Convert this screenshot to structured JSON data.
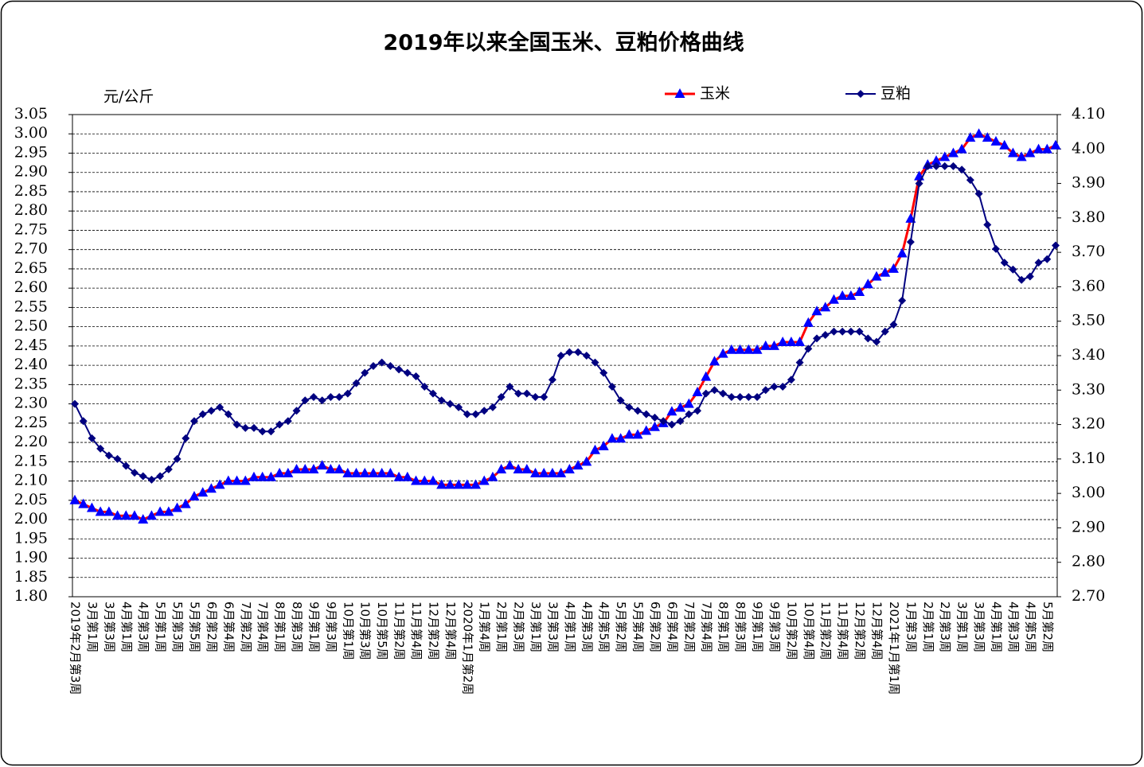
{
  "chart_data": {
    "type": "line",
    "title": "2019年以来全国玉米、豆粕价格曲线",
    "y_label": "元/公斤",
    "categories": [
      "2019年2月第3周",
      null,
      "3月第1周",
      null,
      "3月第3周",
      null,
      "4月第1周",
      null,
      "4月第3周",
      null,
      "5月第1周",
      null,
      "5月第3周",
      null,
      "5月第5周",
      null,
      "6月第2周",
      null,
      "6月第4周",
      null,
      "7月第2周",
      null,
      "7月第4周",
      null,
      "8月第1周",
      null,
      "8月第3周",
      null,
      "9月第1周",
      null,
      "9月第3周",
      null,
      "10月第1周",
      null,
      "10月第3周",
      null,
      "10月第5周",
      null,
      "11月第2周",
      null,
      "11月第4周",
      null,
      "12月第2周",
      null,
      "12月第4周",
      null,
      "2020年1月第2周",
      null,
      "1月第4周",
      null,
      "2月第1周",
      null,
      "2月第3周",
      null,
      "3月第1周",
      null,
      "3月第3周",
      null,
      "4月第1周",
      null,
      "4月第3周",
      null,
      "4月第5周",
      null,
      "5月第2周",
      null,
      "5月第4周",
      null,
      "6月第2周",
      null,
      "6月第4周",
      null,
      "7月第2周",
      null,
      "7月第4周",
      null,
      "8月第1周",
      null,
      "8月第3周",
      null,
      "9月第1周",
      null,
      "9月第3周",
      null,
      "10月第2周",
      null,
      "10月第4周",
      null,
      "11月第2周",
      null,
      "11月第4周",
      null,
      "12月第2周",
      null,
      "12月第4周",
      null,
      "2021年1月第1周",
      null,
      "1月第3周",
      null,
      "2月第1周",
      null,
      "2月第3周",
      null,
      "3月第1周",
      null,
      "3月第3周",
      null,
      "4月第1周",
      null,
      "4月第3周",
      null,
      "4月第5周",
      null,
      "5月第2周",
      null
    ],
    "series": [
      {
        "name": "玉米",
        "color": "#ff0000",
        "marker_color": "#0000ff",
        "marker": "triangle",
        "values": [
          2.05,
          2.04,
          2.03,
          2.02,
          2.02,
          2.01,
          2.01,
          2.01,
          2.0,
          2.01,
          2.02,
          2.02,
          2.03,
          2.04,
          2.06,
          2.07,
          2.08,
          2.09,
          2.1,
          2.1,
          2.1,
          2.11,
          2.11,
          2.11,
          2.12,
          2.12,
          2.13,
          2.13,
          2.13,
          2.14,
          2.13,
          2.13,
          2.12,
          2.12,
          2.12,
          2.12,
          2.12,
          2.12,
          2.11,
          2.11,
          2.1,
          2.1,
          2.1,
          2.09,
          2.09,
          2.09,
          2.09,
          2.09,
          2.1,
          2.11,
          2.13,
          2.14,
          2.13,
          2.13,
          2.12,
          2.12,
          2.12,
          2.12,
          2.13,
          2.14,
          2.15,
          2.18,
          2.19,
          2.21,
          2.21,
          2.22,
          2.22,
          2.23,
          2.24,
          2.25,
          2.28,
          2.29,
          2.3,
          2.33,
          2.37,
          2.41,
          2.43,
          2.44,
          2.44,
          2.44,
          2.44,
          2.45,
          2.45,
          2.46,
          2.46,
          2.46,
          2.51,
          2.54,
          2.55,
          2.57,
          2.58,
          2.58,
          2.59,
          2.61,
          2.63,
          2.64,
          2.65,
          2.69,
          2.78,
          2.89,
          2.92,
          2.93,
          2.94,
          2.95,
          2.96,
          2.99,
          3.0,
          2.99,
          2.98,
          2.97,
          2.95,
          2.94,
          2.95,
          2.96,
          2.96,
          2.97
        ]
      },
      {
        "name": "豆粕",
        "color": "#000080",
        "marker_color": "#000080",
        "marker": "diamond",
        "axis": "y2",
        "values": [
          3.26,
          3.21,
          3.16,
          3.13,
          3.11,
          3.1,
          3.08,
          3.06,
          3.05,
          3.04,
          3.05,
          3.07,
          3.1,
          3.16,
          3.21,
          3.23,
          3.24,
          3.25,
          3.23,
          3.2,
          3.19,
          3.19,
          3.18,
          3.18,
          3.2,
          3.21,
          3.24,
          3.27,
          3.28,
          3.27,
          3.28,
          3.28,
          3.29,
          3.32,
          3.35,
          3.37,
          3.38,
          3.37,
          3.36,
          3.35,
          3.34,
          3.31,
          3.29,
          3.27,
          3.26,
          3.25,
          3.23,
          3.23,
          3.24,
          3.25,
          3.28,
          3.31,
          3.29,
          3.29,
          3.28,
          3.28,
          3.33,
          3.4,
          3.41,
          3.41,
          3.4,
          3.38,
          3.35,
          3.31,
          3.27,
          3.25,
          3.24,
          3.23,
          3.22,
          3.21,
          3.2,
          3.21,
          3.23,
          3.24,
          3.29,
          3.3,
          3.29,
          3.28,
          3.28,
          3.28,
          3.28,
          3.3,
          3.31,
          3.31,
          3.33,
          3.38,
          3.42,
          3.45,
          3.46,
          3.47,
          3.47,
          3.47,
          3.47,
          3.45,
          3.44,
          3.47,
          3.49,
          3.56,
          3.73,
          3.9,
          3.95,
          3.95,
          3.95,
          3.95,
          3.94,
          3.91,
          3.87,
          3.78,
          3.71,
          3.67,
          3.65,
          3.62,
          3.63,
          3.67,
          3.68,
          3.72
        ]
      }
    ],
    "ylim": [
      1.8,
      3.05
    ],
    "yticks": [
      {
        "value": 1.8,
        "label": "1.80"
      },
      1.85,
      {
        "value": 1.9,
        "label": "1.90"
      },
      1.95,
      {
        "value": 2.0,
        "label": "2.00"
      },
      2.05,
      {
        "value": 2.1,
        "label": "2.10"
      },
      2.15,
      {
        "value": 2.2,
        "label": "2.20"
      },
      2.25,
      {
        "value": 2.3,
        "label": "2.30"
      },
      2.35,
      {
        "value": 2.4,
        "label": "2.40"
      },
      2.45,
      {
        "value": 2.5,
        "label": "2.50"
      },
      2.55,
      {
        "value": 2.6,
        "label": "2.60"
      },
      2.65,
      {
        "value": 2.7,
        "label": "2.70"
      },
      2.75,
      {
        "value": 2.8,
        "label": "2.80"
      },
      2.85,
      {
        "value": 2.9,
        "label": "2.90"
      },
      2.95,
      {
        "value": 3.0,
        "label": "3.00"
      },
      3.05
    ],
    "y2lim": [
      2.7,
      4.1
    ],
    "y2ticks": [
      {
        "value": 2.7,
        "label": "2.70"
      },
      {
        "value": 2.8,
        "label": "2.80"
      },
      {
        "value": 2.9,
        "label": "2.90"
      },
      {
        "value": 3.0,
        "label": "3.00"
      },
      {
        "value": 3.1,
        "label": "3.10"
      },
      {
        "value": 3.2,
        "label": "3.20"
      },
      {
        "value": 3.3,
        "label": "3.30"
      },
      {
        "value": 3.4,
        "label": "3.40"
      },
      {
        "value": 3.5,
        "label": "3.50"
      },
      {
        "value": 3.6,
        "label": "3.60"
      },
      {
        "value": 3.7,
        "label": "3.70"
      },
      {
        "value": 3.8,
        "label": "3.80"
      },
      {
        "value": 3.9,
        "label": "3.90"
      },
      {
        "value": 4.0,
        "label": "4.00"
      },
      {
        "value": 4.1,
        "label": "4.10"
      }
    ],
    "grid": true,
    "legend": "top"
  }
}
